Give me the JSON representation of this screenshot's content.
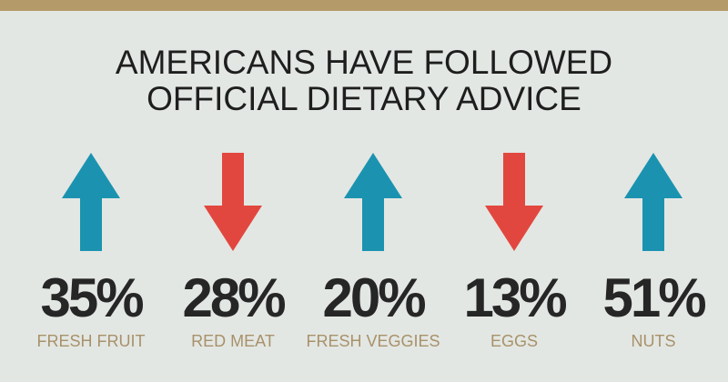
{
  "header": {
    "title_lines": [
      "AMERICANS HAVE FOLLOWED",
      "OFFICIAL DIETARY ADVICE"
    ]
  },
  "items": [
    {
      "value": "35%",
      "label": "FRESH FRUIT",
      "direction": "up",
      "color": "#1b93b0"
    },
    {
      "value": "28%",
      "label": "RED MEAT",
      "direction": "down",
      "color": "#e2473f"
    },
    {
      "value": "20%",
      "label": "FRESH VEGGIES",
      "direction": "up",
      "color": "#1b93b0"
    },
    {
      "value": "13%",
      "label": "EGGS",
      "direction": "down",
      "color": "#e2473f"
    },
    {
      "value": "51%",
      "label": "NUTS",
      "direction": "up",
      "color": "#1b93b0"
    }
  ]
}
